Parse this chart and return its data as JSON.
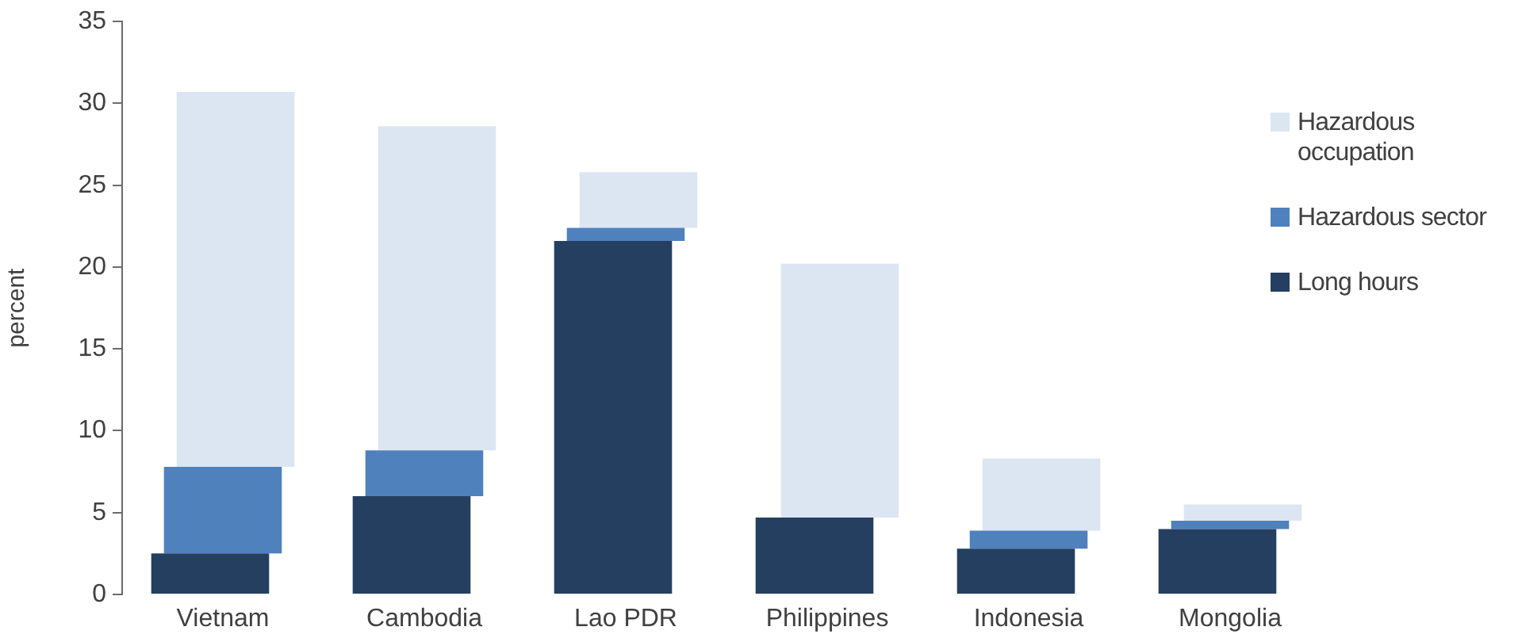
{
  "chart_data": {
    "type": "bar",
    "stacked": true,
    "ylabel": "percent",
    "categories": [
      "Vietnam",
      "Cambodia",
      "Lao PDR",
      "Philippines",
      "Indonesia",
      "Mongolia"
    ],
    "series": [
      {
        "name": "Long hours",
        "color": "#253f60",
        "values": [
          2.5,
          6.0,
          21.6,
          4.7,
          2.8,
          4.0
        ]
      },
      {
        "name": "Hazardous sector",
        "color": "#4f81bd",
        "values": [
          5.3,
          2.8,
          0.8,
          null,
          1.1,
          0.5
        ]
      },
      {
        "name": "Hazardous occupation",
        "color": "#dce6f2",
        "values": [
          22.9,
          19.8,
          3.4,
          15.5,
          4.4,
          1.0
        ]
      }
    ],
    "ylim": [
      0,
      35
    ],
    "yticks": [
      0,
      5,
      10,
      15,
      20,
      25,
      30,
      35
    ],
    "grid": false,
    "legend": "right"
  }
}
